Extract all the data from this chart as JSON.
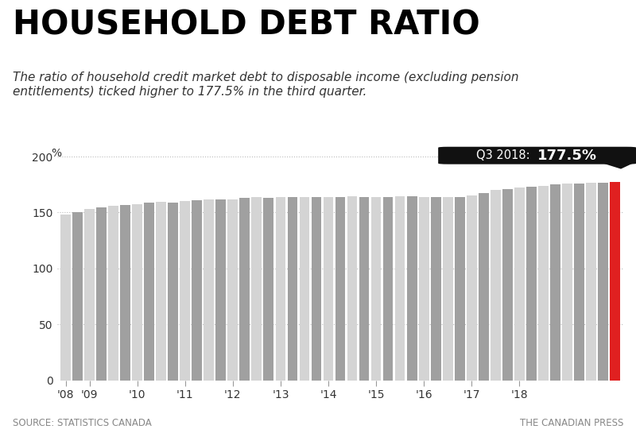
{
  "title": "HOUSEHOLD DEBT RATIO",
  "subtitle": "The ratio of household credit market debt to disposable income (excluding pension\nentitlements) ticked higher to 177.5% in the third quarter.",
  "annotation_prefix": "Q3 2018: ",
  "annotation_bold": "177.5%",
  "source_left": "SOURCE: STATISTICS CANADA",
  "source_right": "THE CANADIAN PRESS",
  "values": [
    148.0,
    150.5,
    153.0,
    154.5,
    156.0,
    157.0,
    157.5,
    158.5,
    159.5,
    159.0,
    160.5,
    161.0,
    162.0,
    161.5,
    162.0,
    163.0,
    163.5,
    163.0,
    163.5,
    163.5,
    164.0,
    163.5,
    163.5,
    163.5,
    164.5,
    164.0,
    163.5,
    164.0,
    164.5,
    164.5,
    163.5,
    163.5,
    164.0,
    163.5,
    165.0,
    167.5,
    170.0,
    171.0,
    172.5,
    173.0,
    174.0,
    175.5,
    176.0,
    176.0,
    176.5,
    176.5,
    177.5
  ],
  "color_light": "#d4d4d4",
  "color_dark": "#a0a0a0",
  "color_last": "#e02020",
  "yticks": [
    0,
    50,
    100,
    150,
    200
  ],
  "ylim": [
    0,
    215
  ],
  "xlabel_ticks": [
    "'08",
    "'09",
    "'10",
    "'11",
    "'12",
    "'13",
    "'14",
    "'15",
    "'16",
    "'17",
    "'18"
  ],
  "grid_color": "#bbbbbb",
  "background_color": "#ffffff",
  "title_fontsize": 30,
  "subtitle_fontsize": 11,
  "annotation_box_color": "#111111",
  "annotation_text_color": "#ffffff"
}
